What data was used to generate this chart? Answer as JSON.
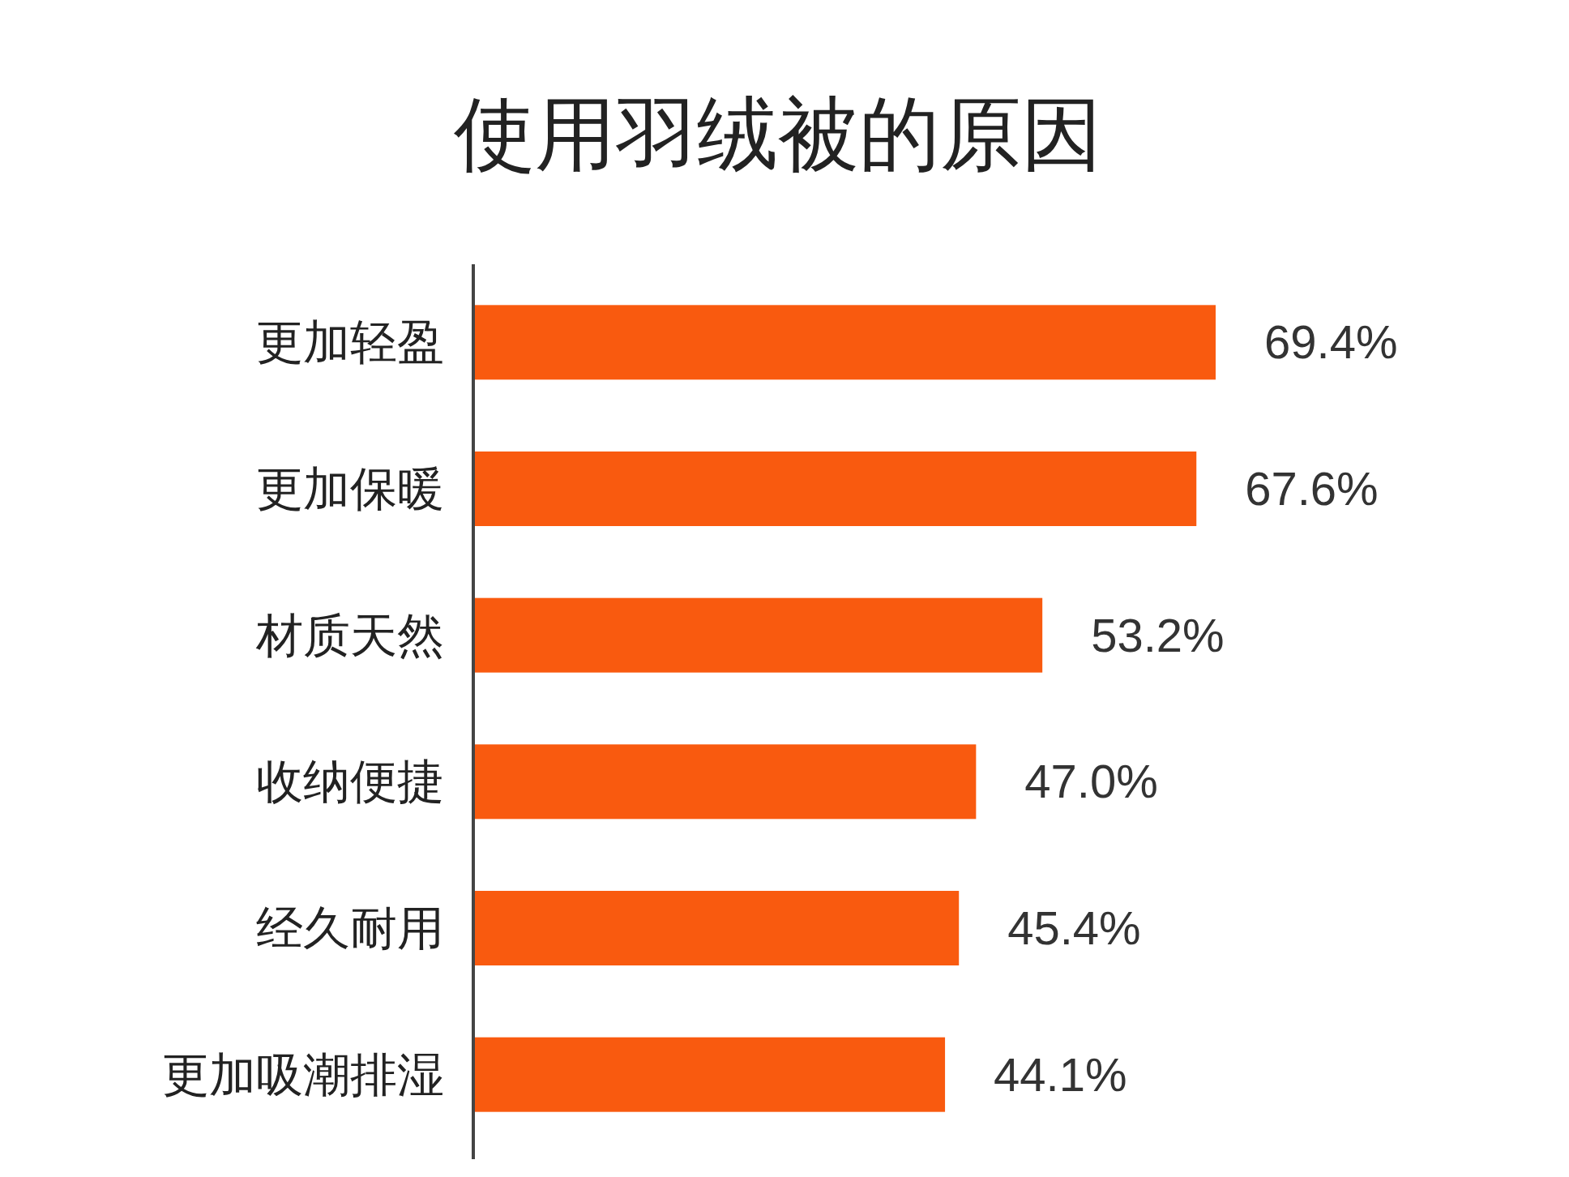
{
  "chart_data": {
    "type": "bar",
    "orientation": "horizontal",
    "title": "使用羽绒被的原因",
    "categories": [
      "更加轻盈",
      "更加保暖",
      "材质天然",
      "收纳便捷",
      "经久耐用",
      "更加吸潮排湿"
    ],
    "values": [
      69.4,
      67.6,
      53.2,
      47.0,
      45.4,
      44.1
    ],
    "value_labels": [
      "69.4%",
      "67.6%",
      "53.2%",
      "47.0%",
      "45.4%",
      "44.1%"
    ],
    "color": "#f95a0f"
  }
}
